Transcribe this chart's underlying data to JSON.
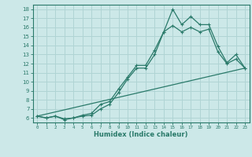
{
  "title": "",
  "xlabel": "Humidex (Indice chaleur)",
  "bg_color": "#cce8e8",
  "grid_color": "#b0d4d4",
  "line_color": "#2a7a6a",
  "xlim": [
    -0.5,
    23.5
  ],
  "ylim": [
    5.5,
    18.5
  ],
  "yticks": [
    6,
    7,
    8,
    9,
    10,
    11,
    12,
    13,
    14,
    15,
    16,
    17,
    18
  ],
  "xticks": [
    0,
    1,
    2,
    3,
    4,
    5,
    6,
    7,
    8,
    9,
    10,
    11,
    12,
    13,
    14,
    15,
    16,
    17,
    18,
    19,
    20,
    21,
    22,
    23
  ],
  "line1_x": [
    0,
    1,
    2,
    3,
    4,
    5,
    6,
    7,
    8,
    9,
    10,
    11,
    12,
    13,
    14,
    15,
    16,
    17,
    18,
    19,
    20,
    21,
    22,
    23
  ],
  "line1_y": [
    6.2,
    6.0,
    6.2,
    5.8,
    6.0,
    6.3,
    6.5,
    7.5,
    7.8,
    9.2,
    10.5,
    11.8,
    11.8,
    13.5,
    15.5,
    18.0,
    16.3,
    17.2,
    16.3,
    16.3,
    13.9,
    12.1,
    13.0,
    11.5
  ],
  "line2_x": [
    0,
    1,
    2,
    3,
    4,
    5,
    6,
    7,
    8,
    9,
    10,
    11,
    12,
    13,
    14,
    15,
    16,
    17,
    18,
    19,
    20,
    21,
    22,
    23
  ],
  "line2_y": [
    6.2,
    6.0,
    6.2,
    5.9,
    6.0,
    6.2,
    6.3,
    7.0,
    7.5,
    8.8,
    10.3,
    11.5,
    11.5,
    13.0,
    15.5,
    16.2,
    15.5,
    16.0,
    15.5,
    15.8,
    13.3,
    12.0,
    12.5,
    11.5
  ],
  "line3_x": [
    0,
    23
  ],
  "line3_y": [
    6.2,
    11.5
  ]
}
